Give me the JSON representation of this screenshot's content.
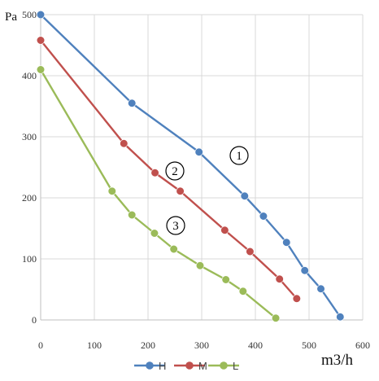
{
  "chart_data": {
    "type": "line",
    "ylabel": "Pa",
    "xlabel": "m3/h",
    "xlim": [
      0,
      600
    ],
    "ylim": [
      0,
      500
    ],
    "xticks": [
      "0",
      "100",
      "200",
      "300",
      "400",
      "500",
      "600"
    ],
    "yticks": [
      "0",
      "100",
      "200",
      "300",
      "400",
      "500"
    ],
    "grid": true,
    "legend_position": "bottom",
    "series": [
      {
        "name": "H",
        "color": "#4f81bd",
        "callout": "1",
        "x": [
          0,
          170,
          295,
          380,
          415,
          458,
          492,
          522,
          558
        ],
        "y": [
          500,
          355,
          275,
          203,
          170,
          127,
          81,
          51,
          5
        ]
      },
      {
        "name": "M",
        "color": "#c0504d",
        "callout": "2",
        "x": [
          0,
          155,
          213,
          260,
          343,
          390,
          445,
          477
        ],
        "y": [
          458,
          289,
          241,
          211,
          147,
          112,
          67,
          35
        ]
      },
      {
        "name": "L",
        "color": "#9bbb59",
        "callout": "3",
        "x": [
          0,
          133,
          170,
          212,
          248,
          297,
          345,
          377,
          438
        ],
        "y": [
          410,
          211,
          172,
          142,
          116,
          89,
          66,
          47,
          3
        ]
      }
    ]
  }
}
